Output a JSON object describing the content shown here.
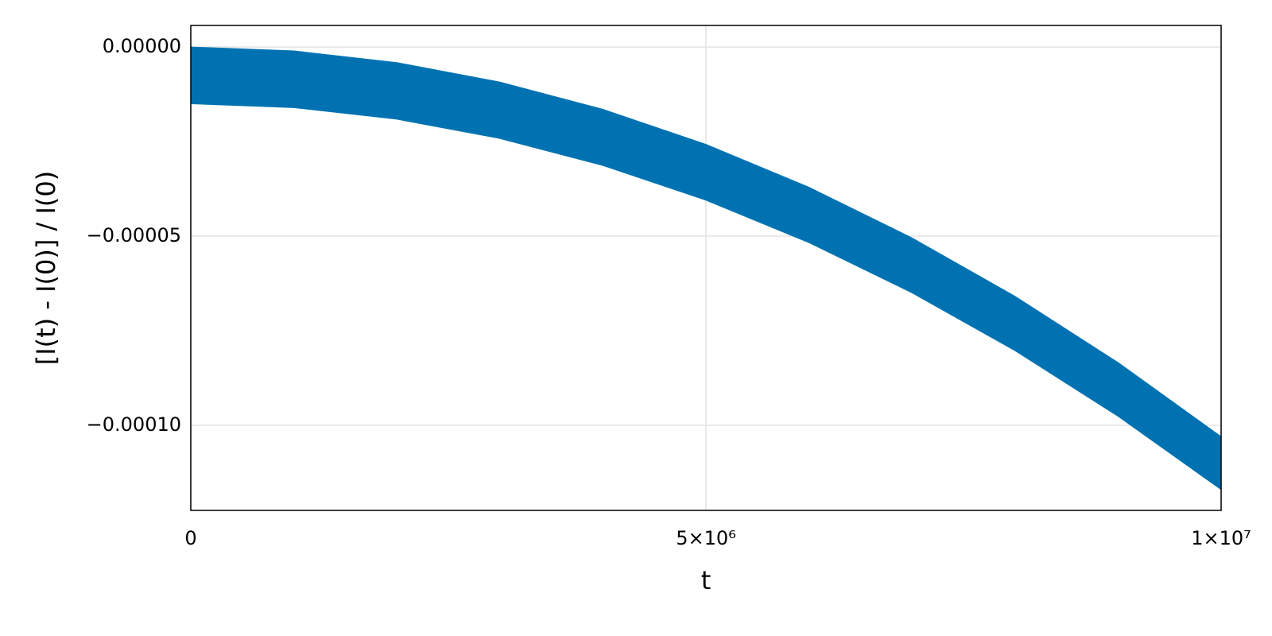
{
  "chart_data": {
    "type": "band",
    "xlabel": "t",
    "ylabel": "[I(t) - I(0)] / I(0)",
    "color": "#0072b2",
    "x": [
      0,
      1000000,
      2000000,
      3000000,
      4000000,
      5000000,
      6000000,
      7000000,
      8000000,
      9000000,
      10000000
    ],
    "upper": [
      0,
      -1.03e-06,
      -4.12e-06,
      -9.27e-06,
      -1.648e-05,
      -2.575e-05,
      -3.708e-05,
      -5.047e-05,
      -6.592e-05,
      -8.343e-05,
      -0.000103
    ],
    "lower": [
      -1.5e-05,
      -1.602e-05,
      -1.908e-05,
      -2.418e-05,
      -3.132e-05,
      -4.05e-05,
      -5.172e-05,
      -6.498e-05,
      -8.028e-05,
      -9.762e-05,
      -0.000117
    ],
    "xlim": [
      0,
      10000000
    ],
    "xticks": [
      0,
      {
        "value": 5000000,
        "label": "5×10⁶"
      },
      {
        "value": 10000000,
        "label": "1×10⁷"
      }
    ],
    "ylim": [
      -0.0001225,
      5.7e-06
    ],
    "yticks": [
      {
        "value": 0,
        "label": "0.00000"
      },
      {
        "value": -5e-05,
        "label": "−0.00005"
      },
      {
        "value": -0.0001,
        "label": "−0.00010"
      }
    ],
    "grid": true
  }
}
